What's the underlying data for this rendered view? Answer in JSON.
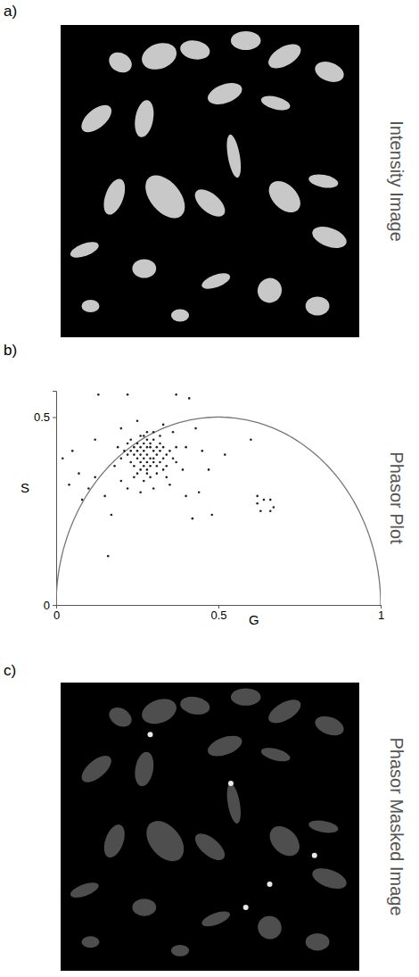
{
  "figure": {
    "panels": [
      {
        "letter": "a)",
        "title": "Intensity Image"
      },
      {
        "letter": "b)",
        "title": "Phasor Plot"
      },
      {
        "letter": "c)",
        "title": "Phasor Masked Image"
      }
    ]
  },
  "chart_data": {
    "type": "scatter",
    "x_label": "G",
    "y_label": "S",
    "xlim": [
      0,
      1
    ],
    "ylim": [
      0,
      0.57
    ],
    "xticks": [
      0,
      0.5,
      1
    ],
    "yticks": [
      0,
      0.5
    ],
    "grid": false,
    "marker": "circle",
    "color": "#222222",
    "x": [
      0.28,
      0.27,
      0.29,
      0.26,
      0.3,
      0.28,
      0.28,
      0.25,
      0.31,
      0.27,
      0.29,
      0.26,
      0.3,
      0.24,
      0.32,
      0.27,
      0.29,
      0.25,
      0.31,
      0.23,
      0.33,
      0.28,
      0.28,
      0.26,
      0.3,
      0.24,
      0.32,
      0.22,
      0.34,
      0.27,
      0.29,
      0.25,
      0.31,
      0.23,
      0.33,
      0.26,
      0.3,
      0.21,
      0.35,
      0.28,
      0.27,
      0.24,
      0.32,
      0.22,
      0.34,
      0.2,
      0.36,
      0.29,
      0.26,
      0.31,
      0.23,
      0.33,
      0.25,
      0.3,
      0.19,
      0.37,
      0.27,
      0.28,
      0.24,
      0.32,
      0.13,
      0.22,
      0.37,
      0.41,
      0.02,
      0.07,
      0.1,
      0.12,
      0.15,
      0.16,
      0.2,
      0.22,
      0.26,
      0.35,
      0.4,
      0.42,
      0.48,
      0.44,
      0.62,
      0.63,
      0.64,
      0.66,
      0.67,
      0.66,
      0.62,
      0.6,
      0.12,
      0.2,
      0.25,
      0.33,
      0.36,
      0.4,
      0.45,
      0.39,
      0.3,
      0.34,
      0.18,
      0.37,
      0.08,
      0.04,
      0.17,
      0.05,
      0.43,
      0.47,
      0.52
    ],
    "values": [
      0.4,
      0.41,
      0.39,
      0.4,
      0.41,
      0.42,
      0.38,
      0.41,
      0.4,
      0.39,
      0.42,
      0.38,
      0.38,
      0.4,
      0.41,
      0.43,
      0.37,
      0.39,
      0.42,
      0.41,
      0.39,
      0.44,
      0.36,
      0.42,
      0.39,
      0.42,
      0.38,
      0.4,
      0.4,
      0.37,
      0.43,
      0.43,
      0.37,
      0.38,
      0.42,
      0.36,
      0.44,
      0.41,
      0.41,
      0.35,
      0.45,
      0.37,
      0.43,
      0.43,
      0.37,
      0.39,
      0.39,
      0.34,
      0.45,
      0.35,
      0.44,
      0.36,
      0.35,
      0.46,
      0.42,
      0.42,
      0.33,
      0.46,
      0.34,
      0.45,
      0.56,
      0.56,
      0.56,
      0.55,
      0.39,
      0.35,
      0.31,
      0.34,
      0.29,
      0.13,
      0.33,
      0.31,
      0.3,
      0.32,
      0.29,
      0.23,
      0.24,
      0.3,
      0.27,
      0.25,
      0.28,
      0.28,
      0.26,
      0.25,
      0.29,
      0.44,
      0.44,
      0.47,
      0.49,
      0.48,
      0.46,
      0.42,
      0.41,
      0.36,
      0.31,
      0.34,
      0.37,
      0.38,
      0.28,
      0.32,
      0.24,
      0.41,
      0.47,
      0.36,
      0.4
    ]
  }
}
